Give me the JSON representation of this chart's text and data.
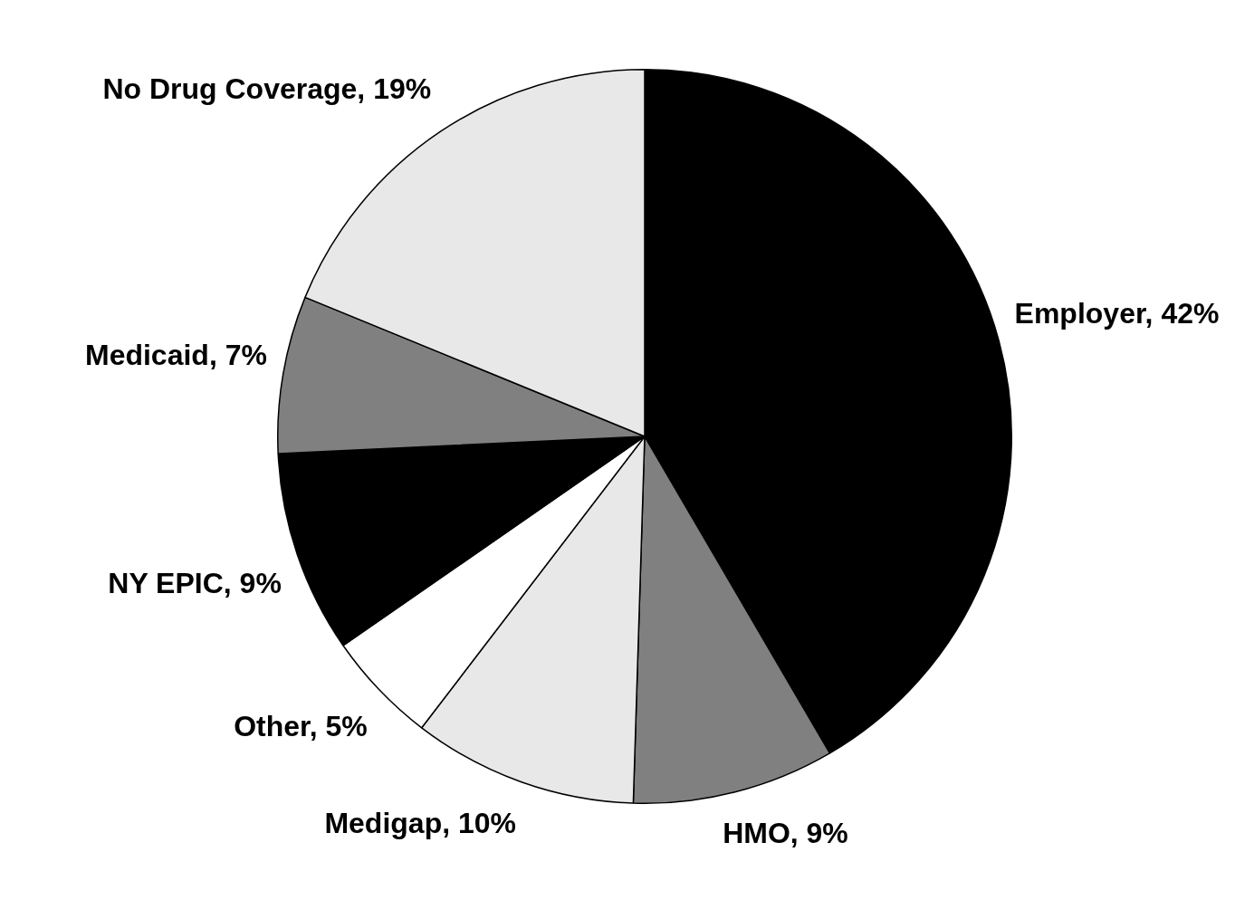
{
  "chart_data": {
    "type": "pie",
    "categories": [
      "Employer",
      "HMO",
      "Medigap",
      "Other",
      "NY EPIC",
      "Medicaid",
      "No Drug Coverage"
    ],
    "values": [
      42,
      9,
      10,
      5,
      9,
      7,
      19
    ],
    "value_labels": [
      "42%",
      "9%",
      "10%",
      "5%",
      "9%",
      "7%",
      "19%"
    ],
    "colors": [
      "#000000",
      "#808080",
      "#e8e8e8",
      "#ffffff",
      "#000000",
      "#808080",
      "#e8e8e8"
    ],
    "legend": false
  }
}
